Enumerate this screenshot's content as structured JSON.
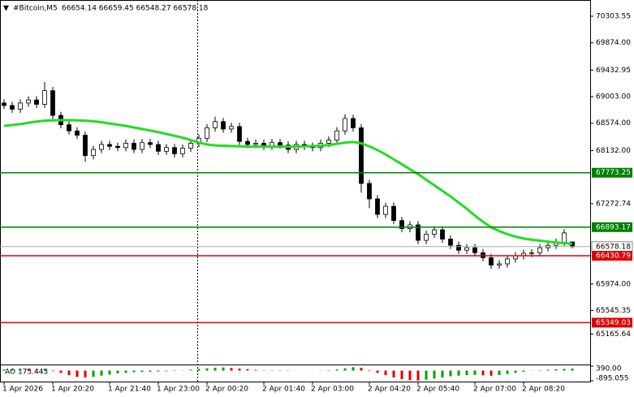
{
  "header": {
    "title": "#Bitcoin,M5",
    "ohlc": "66654.14 66659.45 66548.27 66578.18"
  },
  "chart_data": [
    {
      "type": "candlestick",
      "categories": [
        "1 Apr 2026",
        null,
        null,
        null,
        null,
        null,
        "1 Apr 20:20",
        null,
        null,
        null,
        null,
        null,
        null,
        "1 Apr 21:40",
        null,
        null,
        null,
        null,
        null,
        "1 Apr 23:00",
        null,
        null,
        null,
        null,
        null,
        "2 Apr 00:20",
        null,
        null,
        null,
        null,
        null,
        null,
        "2 Apr 01:40",
        null,
        null,
        null,
        null,
        null,
        "2 Apr 03:00",
        null,
        null,
        null,
        null,
        null,
        null,
        "2 Apr 04:20",
        null,
        null,
        null,
        null,
        null,
        "2 Apr 05:40",
        null,
        null,
        null,
        null,
        null,
        null,
        "2 Apr 07:00",
        null,
        null,
        null,
        null,
        null,
        "2 Apr 08:20",
        null,
        null,
        null,
        null,
        null,
        null
      ],
      "open": [
        68900,
        68860,
        68800,
        68900,
        68950,
        68880,
        69100,
        68700,
        68550,
        68450,
        68380,
        68050,
        68150,
        68230,
        68200,
        68180,
        68250,
        68150,
        68260,
        68230,
        68120,
        68180,
        68080,
        68170,
        68250,
        68330,
        68500,
        68600,
        68480,
        68520,
        68280,
        68230,
        68250,
        68200,
        68260,
        68220,
        68150,
        68230,
        68200,
        68180,
        68250,
        68300,
        68450,
        68650,
        68500,
        67600,
        67350,
        67100,
        67230,
        67000,
        66870,
        66930,
        66680,
        66780,
        66850,
        66700,
        66600,
        66520,
        66560,
        66480,
        66400,
        66280,
        66300,
        66380,
        66430,
        66470,
        66480,
        66560,
        66600,
        66650,
        66654.14
      ],
      "high": [
        68960,
        68920,
        68960,
        69010,
        69010,
        69240,
        69160,
        68760,
        68610,
        68510,
        68440,
        68210,
        68290,
        68290,
        68260,
        68310,
        68310,
        68320,
        68320,
        68290,
        68240,
        68240,
        68230,
        68310,
        68390,
        68560,
        68680,
        68660,
        68580,
        68580,
        68340,
        68310,
        68310,
        68320,
        68320,
        68280,
        68290,
        68290,
        68260,
        68310,
        68360,
        68510,
        68720,
        68710,
        68560,
        67660,
        67410,
        67290,
        67290,
        67060,
        66990,
        66990,
        66840,
        66910,
        66910,
        66760,
        66660,
        66620,
        66620,
        66540,
        66460,
        66360,
        66440,
        66490,
        66530,
        66540,
        66620,
        66660,
        66710,
        66860,
        66659.45
      ],
      "low": [
        68800,
        68740,
        68740,
        68840,
        68820,
        68820,
        68640,
        68490,
        68390,
        68320,
        67950,
        67990,
        68090,
        68140,
        68120,
        68120,
        68090,
        68090,
        68170,
        68060,
        68060,
        68020,
        68020,
        68110,
        68190,
        68270,
        68440,
        68420,
        68420,
        68220,
        68170,
        68170,
        68140,
        68140,
        68160,
        68090,
        68090,
        68140,
        68120,
        68120,
        68190,
        68240,
        68390,
        68440,
        67450,
        67200,
        67040,
        67040,
        66940,
        66810,
        66810,
        66620,
        66620,
        66720,
        66640,
        66540,
        66460,
        66460,
        66420,
        66340,
        66220,
        66220,
        66240,
        66320,
        66370,
        66410,
        66420,
        66500,
        66540,
        66590,
        66548.27
      ],
      "close": [
        68860,
        68800,
        68900,
        68950,
        68880,
        69100,
        68700,
        68550,
        68450,
        68380,
        68050,
        68150,
        68230,
        68200,
        68180,
        68250,
        68150,
        68260,
        68230,
        68120,
        68180,
        68080,
        68170,
        68250,
        68330,
        68500,
        68600,
        68480,
        68520,
        68280,
        68230,
        68250,
        68200,
        68260,
        68220,
        68150,
        68230,
        68200,
        68180,
        68250,
        68300,
        68450,
        68650,
        68500,
        67600,
        67350,
        67100,
        67230,
        67000,
        66870,
        66930,
        66680,
        66780,
        66850,
        66700,
        66600,
        66520,
        66560,
        66480,
        66400,
        66280,
        66300,
        66380,
        66430,
        66470,
        66480,
        66560,
        66600,
        66650,
        66800,
        66578.18
      ],
      "color": "#000000",
      "up_fill": "#ffffff",
      "down_fill": "#000000",
      "ma": {
        "color": "#22dd22",
        "values": [
          68530,
          68545,
          68560,
          68580,
          68600,
          68615,
          68620,
          68625,
          68625,
          68620,
          68615,
          68605,
          68590,
          68570,
          68550,
          68530,
          68505,
          68480,
          68455,
          68430,
          68400,
          68370,
          68340,
          68300,
          68260,
          68230,
          68215,
          68210,
          68205,
          68200,
          68195,
          68195,
          68195,
          68195,
          68195,
          68195,
          68195,
          68200,
          68205,
          68210,
          68220,
          68240,
          68260,
          68270,
          68250,
          68200,
          68140,
          68070,
          67990,
          67910,
          67830,
          67750,
          67660,
          67570,
          67480,
          67390,
          67290,
          67190,
          67080,
          66980,
          66890,
          66830,
          66780,
          66740,
          66710,
          66690,
          66675,
          66660,
          66645,
          66635,
          66625
        ]
      },
      "levels": [
        {
          "value": 67773.25,
          "color": "#008000"
        },
        {
          "value": 66893.17,
          "color": "#008000"
        },
        {
          "value": 66430.79,
          "color": "#e00000"
        },
        {
          "value": 65349.03,
          "color": "#e00000"
        }
      ],
      "bid": 66578.18,
      "ylim": [
        64672,
        70566
      ],
      "yticks": [
        70303.55,
        {
          "value": 69874,
          "label": "69874.00"
        },
        69432.95,
        {
          "value": 69003,
          "label": "69003.00"
        },
        {
          "value": 68574,
          "label": "68574.00"
        },
        {
          "value": 68132,
          "label": "68132.00"
        },
        67272.74,
        {
          "value": 65974,
          "label": "65974.00"
        },
        65545.35,
        65165.64
      ]
    },
    {
      "type": "bar",
      "title": "AO 173.443",
      "values": [
        100,
        120,
        150,
        130,
        100,
        120,
        -50,
        -200,
        -400,
        -550,
        -600,
        -550,
        -450,
        -350,
        -250,
        -200,
        -150,
        -120,
        -100,
        -80,
        -60,
        -30,
        20,
        80,
        150,
        200,
        250,
        270,
        230,
        180,
        120,
        60,
        20,
        -20,
        -30,
        -20,
        -10,
        0,
        10,
        20,
        40,
        100,
        200,
        300,
        250,
        50,
        -200,
        -400,
        -600,
        -750,
        -850,
        -880,
        -800,
        -700,
        -600,
        -500,
        -450,
        -400,
        -380,
        -420,
        -450,
        -400,
        -300,
        -200,
        -100,
        -20,
        40,
        80,
        120,
        150,
        173.443
      ],
      "up_color": "#00a000",
      "down_color": "#e00000",
      "ylim": [
        -895.055,
        390
      ],
      "yticks": [
        {
          "value": 390,
          "label": "390.00"
        },
        -895.055
      ]
    }
  ]
}
